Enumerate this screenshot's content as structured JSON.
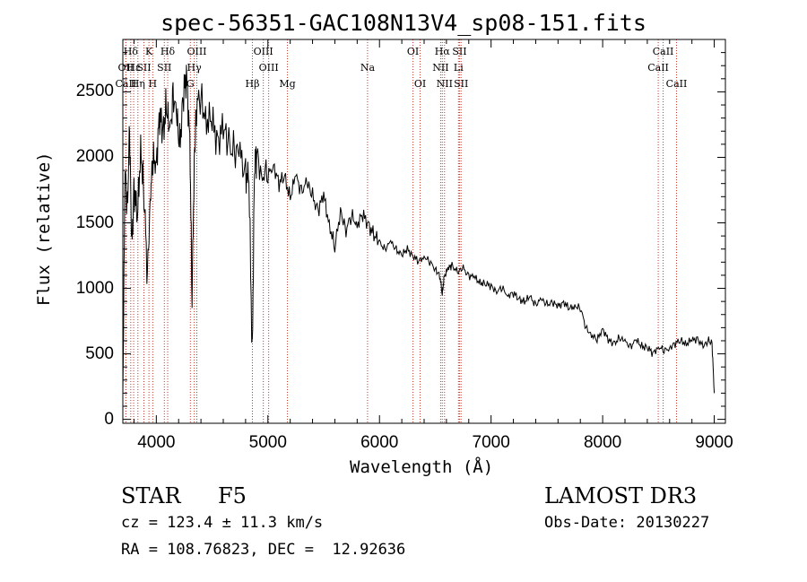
{
  "title": "spec-56351-GAC108N13V4_sp08-151.fits",
  "info": {
    "object_type": "STAR",
    "subclass": "F5",
    "survey": "LAMOST DR3",
    "cz": "cz = 123.4 ± 11.3 km/s",
    "obs_date": "Obs-Date: 20130227",
    "radec": "RA = 108.76823, DEC =  12.92636"
  },
  "chart_data": {
    "type": "line",
    "title": "spec-56351-GAC108N13V4_sp08-151.fits",
    "xlabel": "Wavelength (Å)",
    "ylabel": "Flux (relative)",
    "xlim": [
      3700,
      9100
    ],
    "ylim": [
      -30,
      2900
    ],
    "x_ticks": [
      4000,
      5000,
      6000,
      7000,
      8000,
      9000
    ],
    "y_ticks": [
      0,
      500,
      1000,
      1500,
      2000,
      2500
    ],
    "x_tick_labels": [
      "4000",
      "5000",
      "6000",
      "7000",
      "8000",
      "9000"
    ],
    "y_tick_labels": [
      "0",
      "500",
      "1000",
      "1500",
      "2000",
      "2500"
    ],
    "grid": false,
    "series": [
      {
        "name": "flux",
        "x": [
          3700,
          3720,
          3740,
          3760,
          3780,
          3800,
          3830,
          3860,
          3890,
          3920,
          3950,
          3970,
          4000,
          4030,
          4060,
          4090,
          4120,
          4150,
          4180,
          4210,
          4240,
          4270,
          4300,
          4320,
          4340,
          4360,
          4400,
          4450,
          4500,
          4550,
          4600,
          4650,
          4700,
          4750,
          4800,
          4830,
          4860,
          4880,
          4900,
          4950,
          5000,
          5050,
          5100,
          5150,
          5200,
          5250,
          5300,
          5350,
          5400,
          5450,
          5500,
          5550,
          5600,
          5650,
          5700,
          5750,
          5800,
          5850,
          5900,
          5950,
          6000,
          6050,
          6100,
          6150,
          6200,
          6250,
          6300,
          6350,
          6400,
          6450,
          6500,
          6540,
          6563,
          6580,
          6620,
          6650,
          6700,
          6750,
          6800,
          6850,
          6900,
          6950,
          7000,
          7050,
          7100,
          7150,
          7200,
          7250,
          7300,
          7350,
          7400,
          7450,
          7500,
          7550,
          7600,
          7650,
          7700,
          7750,
          7800,
          7850,
          7900,
          7950,
          8000,
          8050,
          8100,
          8150,
          8200,
          8250,
          8300,
          8350,
          8400,
          8450,
          8500,
          8550,
          8600,
          8650,
          8700,
          8750,
          8800,
          8850,
          8900,
          8950,
          8980,
          9000
        ],
        "y": [
          200,
          1900,
          1600,
          2200,
          1300,
          1800,
          1500,
          2100,
          1700,
          1100,
          1800,
          1950,
          2000,
          2300,
          2200,
          2400,
          2150,
          2500,
          2300,
          2100,
          2450,
          2600,
          2200,
          900,
          2000,
          2400,
          2450,
          2300,
          2250,
          2150,
          2200,
          2100,
          2050,
          2000,
          1900,
          1800,
          500,
          1950,
          2000,
          1900,
          1850,
          1950,
          1800,
          1850,
          1700,
          1850,
          1750,
          1800,
          1700,
          1600,
          1700,
          1500,
          1300,
          1600,
          1450,
          1550,
          1500,
          1550,
          1500,
          1400,
          1350,
          1300,
          1350,
          1300,
          1250,
          1300,
          1250,
          1200,
          1250,
          1200,
          1150,
          1100,
          950,
          1100,
          1150,
          1180,
          1120,
          1150,
          1100,
          1080,
          1050,
          1030,
          1020,
          980,
          1000,
          950,
          960,
          920,
          900,
          930,
          880,
          910,
          880,
          890,
          860,
          900,
          840,
          870,
          850,
          700,
          650,
          600,
          700,
          600,
          580,
          620,
          590,
          560,
          600,
          560,
          550,
          500,
          560,
          520,
          550,
          580,
          600,
          580,
          600,
          620,
          550,
          600,
          580,
          200
        ]
      }
    ],
    "line_markers": [
      {
        "label": "Hδ",
        "x": 3771,
        "row": 1
      },
      {
        "label": "OII",
        "x": 3727,
        "row": 2
      },
      {
        "label": "CaII",
        "x": 3727,
        "row": 3
      },
      {
        "label": "Hε",
        "x": 3797,
        "row": 2
      },
      {
        "label": "Hη",
        "x": 3835,
        "row": 3
      },
      {
        "label": "K",
        "x": 3934,
        "row": 1
      },
      {
        "label": "SII",
        "x": 3889,
        "row": 2
      },
      {
        "label": "H",
        "x": 3968,
        "row": 3
      },
      {
        "label": "Hδ",
        "x": 4102,
        "row": 1
      },
      {
        "label": "SII",
        "x": 4072,
        "row": 2
      },
      {
        "label": "OIII",
        "x": 4363,
        "row": 1
      },
      {
        "label": "Hγ",
        "x": 4340,
        "row": 2
      },
      {
        "label": "G",
        "x": 4305,
        "row": 3
      },
      {
        "label": "Hβ",
        "x": 4861,
        "row": 3
      },
      {
        "label": "OIII",
        "x": 4959,
        "row": 1
      },
      {
        "label": "OIII",
        "x": 5007,
        "row": 2
      },
      {
        "label": "Mg",
        "x": 5175,
        "row": 3
      },
      {
        "label": "Na",
        "x": 5893,
        "row": 2
      },
      {
        "label": "OI",
        "x": 6300,
        "row": 1
      },
      {
        "label": "OI",
        "x": 6364,
        "row": 3
      },
      {
        "label": "Hα",
        "x": 6563,
        "row": 1
      },
      {
        "label": "NII",
        "x": 6548,
        "row": 2
      },
      {
        "label": "NII",
        "x": 6583,
        "row": 3
      },
      {
        "label": "SII",
        "x": 6717,
        "row": 1
      },
      {
        "label": "Li",
        "x": 6708,
        "row": 2
      },
      {
        "label": "SII",
        "x": 6731,
        "row": 3
      },
      {
        "label": "CaII",
        "x": 8542,
        "row": 1
      },
      {
        "label": "CaII",
        "x": 8498,
        "row": 2
      },
      {
        "label": "CaII",
        "x": 8662,
        "row": 3
      }
    ]
  }
}
